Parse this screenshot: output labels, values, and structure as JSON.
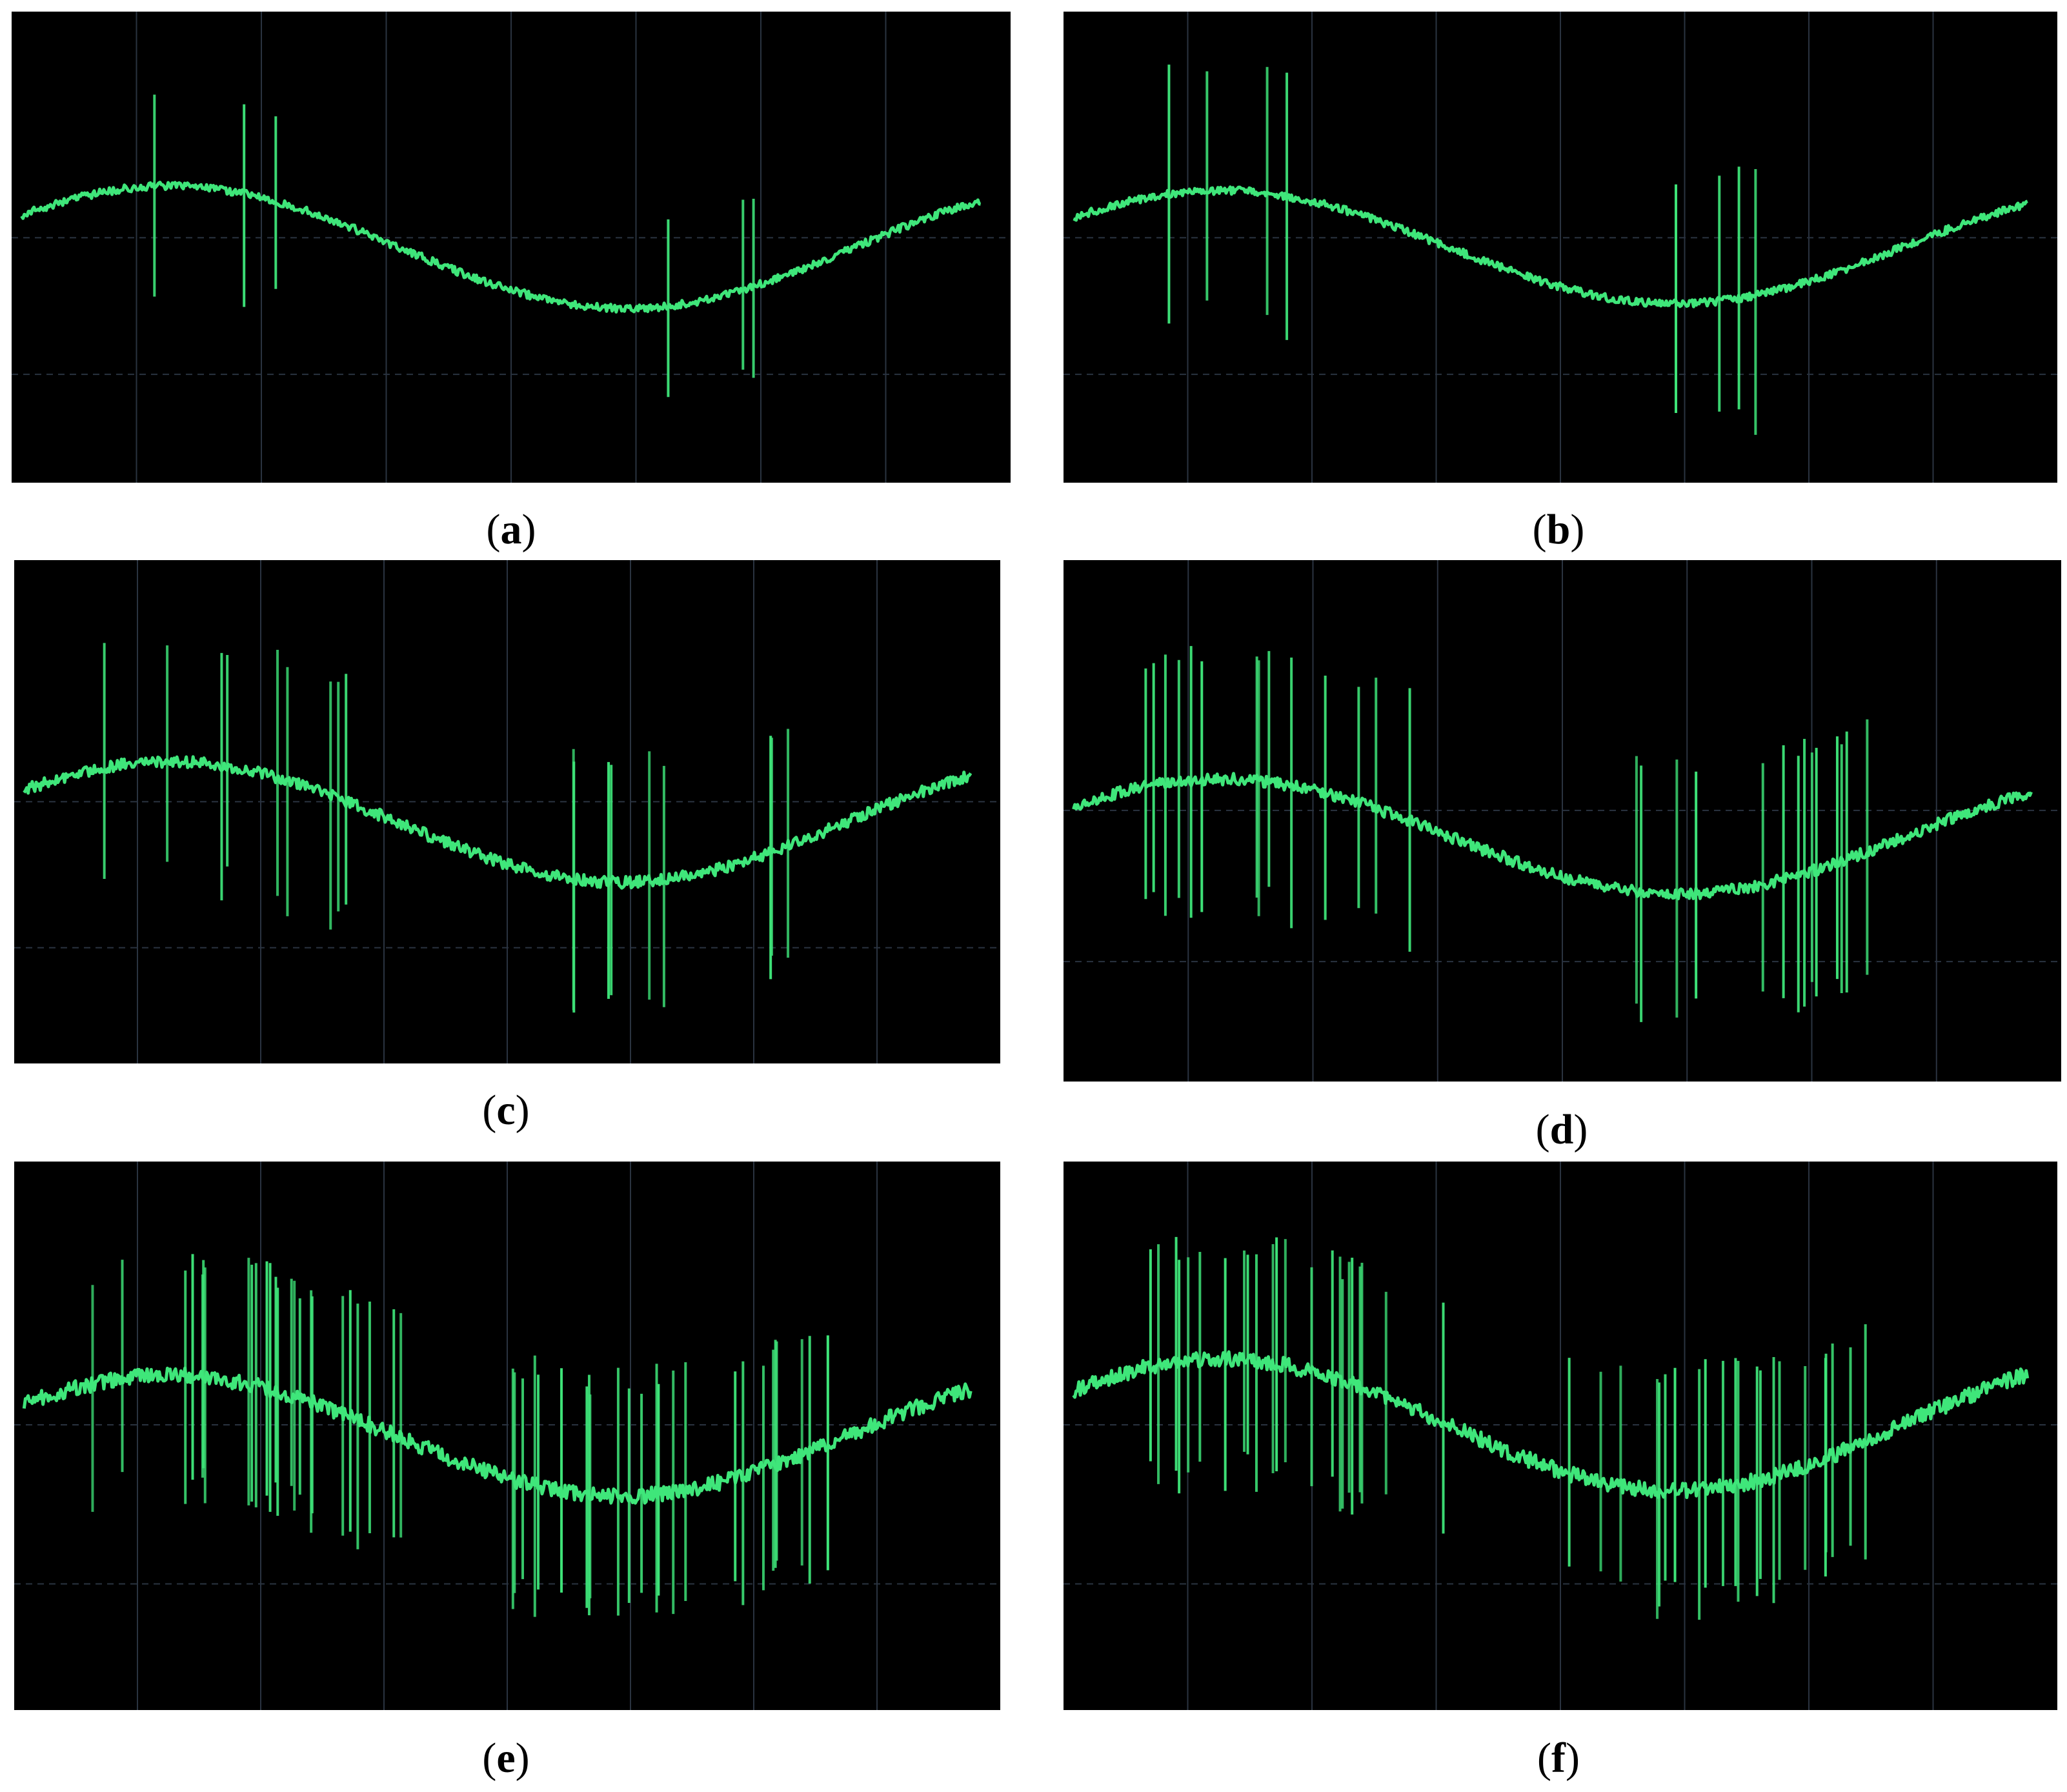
{
  "figure": {
    "trace_color": "#3fe67a",
    "grid_color": "#2a3340",
    "background": "#000000",
    "panels": [
      {
        "id": "a",
        "caption_letter": "a",
        "spike_count": 6,
        "noise_level": "low"
      },
      {
        "id": "b",
        "caption_letter": "b",
        "spike_count": 8,
        "noise_level": "low"
      },
      {
        "id": "c",
        "caption_letter": "c",
        "spike_count": 18,
        "noise_level": "medium"
      },
      {
        "id": "d",
        "caption_letter": "d",
        "spike_count": 28,
        "noise_level": "medium"
      },
      {
        "id": "e",
        "caption_letter": "e",
        "spike_count": 50,
        "noise_level": "high"
      },
      {
        "id": "f",
        "caption_letter": "f",
        "spike_count": 45,
        "noise_level": "high"
      }
    ]
  }
}
